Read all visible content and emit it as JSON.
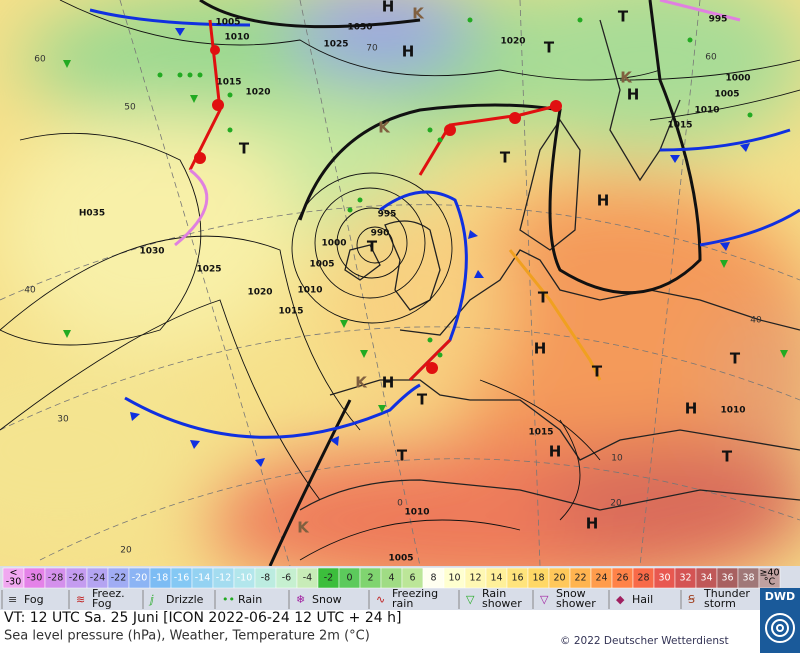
{
  "map_labels": {
    "isobars": [
      1005,
      1010,
      1030,
      1025,
      1020,
      1015,
      1020,
      1000,
      1005,
      1010,
      1015,
      995,
      "H035",
      1030,
      1025,
      1020,
      1015,
      1010,
      1005,
      1000,
      995,
      990,
      1010,
      1015,
      1010,
      1005
    ],
    "graticule": [
      60,
      50,
      40,
      30,
      20,
      70,
      0,
      10,
      20,
      40,
      60
    ],
    "systems": [
      "H",
      "H",
      "H",
      "H",
      "H",
      "H",
      "H",
      "H",
      "H",
      "T",
      "T",
      "T",
      "T",
      "T",
      "T",
      "T",
      "T",
      "T",
      "T",
      "T",
      "K",
      "K",
      "K",
      "K",
      "K"
    ]
  },
  "temperature_scale": {
    "below_symbol": "<",
    "below_value": -30,
    "values": [
      -30,
      -28,
      -26,
      -24,
      -22,
      -20,
      -18,
      -16,
      -14,
      -12,
      -10,
      -8,
      -6,
      -4,
      -2,
      0,
      2,
      4,
      6,
      8,
      10,
      12,
      14,
      16,
      18,
      20,
      22,
      24,
      26,
      28,
      30,
      32,
      34,
      36,
      38
    ],
    "above_symbol": "≥40",
    "unit": "°C",
    "colors": [
      "#f0a8f0",
      "#e482e8",
      "#d490ec",
      "#c49cf0",
      "#b4a4f2",
      "#a0acf4",
      "#8cb4f4",
      "#7cbcf4",
      "#84c8f4",
      "#94d2f2",
      "#a4dcf0",
      "#b2e6ec",
      "#bcece0",
      "#c6f0d0",
      "#c8ecb8",
      "#3cbe3c",
      "#5cca5c",
      "#80d470",
      "#a0dc84",
      "#bce698",
      "#fffff0",
      "#ffffd0",
      "#fff8b4",
      "#fff09a",
      "#ffe47c",
      "#ffd866",
      "#ffc85a",
      "#ffb450",
      "#ff9c4c",
      "#ff8248",
      "#f86a48",
      "#e85850",
      "#d45454",
      "#c05858",
      "#a86060",
      "#a07878",
      "#c0a0a0"
    ]
  },
  "weather_legend": [
    "Fog",
    [
      "Freez.",
      "Fog"
    ],
    "Drizzle",
    "Rain",
    "Snow",
    [
      "Freezing",
      "rain"
    ],
    [
      "Rain",
      "shower"
    ],
    [
      "Snow",
      "shower"
    ],
    "Hail",
    [
      "Thunder",
      "storm"
    ]
  ],
  "footer": {
    "valid_time": "VT: 12 UTC Sa.  25 Juni [ICON 2022-06-24  12 UTC + 24 h]",
    "description": "Sea level pressure (hPa), Weather, Temperature 2m (°C)",
    "copyright": "© 2022 Deutscher Wetterdienst",
    "logo": "DWD"
  }
}
